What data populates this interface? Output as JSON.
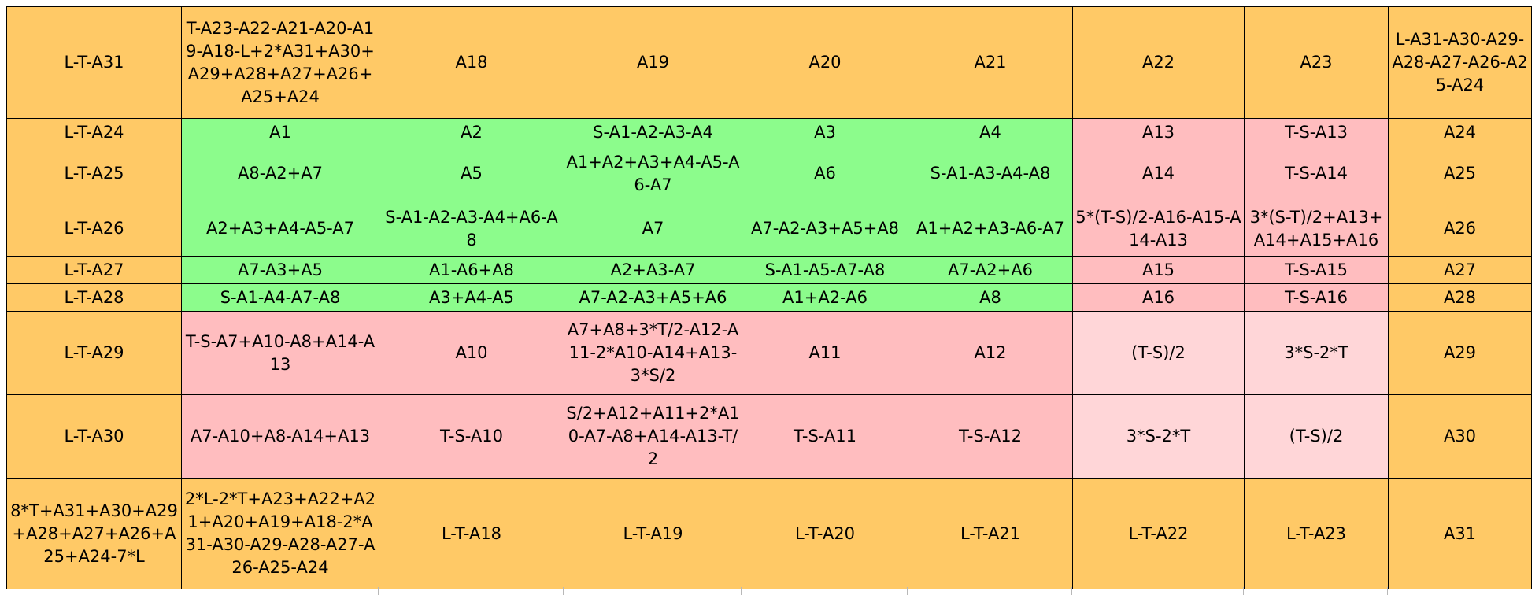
{
  "rows": [
    {
      "cells": [
        {
          "text": "L-T-A31",
          "tone": "orange"
        },
        {
          "text": "T-A23-A22-A21-A20-A19-A18-L+2*A31+A30+A29+A28+A27+A26+A25+A24",
          "tone": "orange"
        },
        {
          "text": "A18",
          "tone": "orange"
        },
        {
          "text": "A19",
          "tone": "orange"
        },
        {
          "text": "A20",
          "tone": "orange"
        },
        {
          "text": "A21",
          "tone": "orange"
        },
        {
          "text": "A22",
          "tone": "orange"
        },
        {
          "text": "A23",
          "tone": "orange"
        },
        {
          "text": "L-A31-A30-A29-A28-A27-A26-A25-A24",
          "tone": "orange"
        }
      ]
    },
    {
      "cells": [
        {
          "text": "L-T-A24",
          "tone": "orange"
        },
        {
          "text": "A1",
          "tone": "green"
        },
        {
          "text": "A2",
          "tone": "green"
        },
        {
          "text": "S-A1-A2-A3-A4",
          "tone": "green"
        },
        {
          "text": "A3",
          "tone": "green"
        },
        {
          "text": "A4",
          "tone": "green"
        },
        {
          "text": "A13",
          "tone": "pink"
        },
        {
          "text": "T-S-A13",
          "tone": "pink"
        },
        {
          "text": "A24",
          "tone": "orange"
        }
      ]
    },
    {
      "cells": [
        {
          "text": "L-T-A25",
          "tone": "orange"
        },
        {
          "text": "A8-A2+A7",
          "tone": "green"
        },
        {
          "text": "A5",
          "tone": "green"
        },
        {
          "text": "A1+A2+A3+A4-A5-A6-A7",
          "tone": "green"
        },
        {
          "text": "A6",
          "tone": "green"
        },
        {
          "text": "S-A1-A3-A4-A8",
          "tone": "green"
        },
        {
          "text": "A14",
          "tone": "pink"
        },
        {
          "text": "T-S-A14",
          "tone": "pink"
        },
        {
          "text": "A25",
          "tone": "orange"
        }
      ]
    },
    {
      "cells": [
        {
          "text": "L-T-A26",
          "tone": "orange"
        },
        {
          "text": "A2+A3+A4-A5-A7",
          "tone": "green"
        },
        {
          "text": "S-A1-A2-A3-A4+A6-A8",
          "tone": "green"
        },
        {
          "text": "A7",
          "tone": "green"
        },
        {
          "text": "A7-A2-A3+A5+A8",
          "tone": "green"
        },
        {
          "text": "A1+A2+A3-A6-A7",
          "tone": "green"
        },
        {
          "text": "5*(T-S)/2-A16-A15-A14-A13",
          "tone": "pink"
        },
        {
          "text": "3*(S-T)/2+A13+A14+A15+A16",
          "tone": "pink"
        },
        {
          "text": "A26",
          "tone": "orange"
        }
      ]
    },
    {
      "cells": [
        {
          "text": "L-T-A27",
          "tone": "orange"
        },
        {
          "text": "A7-A3+A5",
          "tone": "green"
        },
        {
          "text": "A1-A6+A8",
          "tone": "green"
        },
        {
          "text": "A2+A3-A7",
          "tone": "green"
        },
        {
          "text": "S-A1-A5-A7-A8",
          "tone": "green"
        },
        {
          "text": "A7-A2+A6",
          "tone": "green"
        },
        {
          "text": "A15",
          "tone": "pink"
        },
        {
          "text": "T-S-A15",
          "tone": "pink"
        },
        {
          "text": "A27",
          "tone": "orange"
        }
      ]
    },
    {
      "cells": [
        {
          "text": "L-T-A28",
          "tone": "orange"
        },
        {
          "text": "S-A1-A4-A7-A8",
          "tone": "green"
        },
        {
          "text": "A3+A4-A5",
          "tone": "green"
        },
        {
          "text": "A7-A2-A3+A5+A6",
          "tone": "green"
        },
        {
          "text": "A1+A2-A6",
          "tone": "green"
        },
        {
          "text": "A8",
          "tone": "green"
        },
        {
          "text": "A16",
          "tone": "pink"
        },
        {
          "text": "T-S-A16",
          "tone": "pink"
        },
        {
          "text": "A28",
          "tone": "orange"
        }
      ]
    },
    {
      "cells": [
        {
          "text": "L-T-A29",
          "tone": "orange"
        },
        {
          "text": "T-S-A7+A10-A8+A14-A13",
          "tone": "pink"
        },
        {
          "text": "A10",
          "tone": "pink"
        },
        {
          "text": "A7+A8+3*T/2-A12-A11-2*A10-A14+A13-3*S/2",
          "tone": "pink"
        },
        {
          "text": "A11",
          "tone": "pink"
        },
        {
          "text": "A12",
          "tone": "pink"
        },
        {
          "text": "(T-S)/2",
          "tone": "light-pink"
        },
        {
          "text": "3*S-2*T",
          "tone": "light-pink"
        },
        {
          "text": "A29",
          "tone": "orange"
        }
      ]
    },
    {
      "cells": [
        {
          "text": "L-T-A30",
          "tone": "orange"
        },
        {
          "text": "A7-A10+A8-A14+A13",
          "tone": "pink"
        },
        {
          "text": "T-S-A10",
          "tone": "pink"
        },
        {
          "text": "S/2+A12+A11+2*A10-A7-A8+A14-A13-T/2",
          "tone": "pink"
        },
        {
          "text": "T-S-A11",
          "tone": "pink"
        },
        {
          "text": "T-S-A12",
          "tone": "pink"
        },
        {
          "text": "3*S-2*T",
          "tone": "light-pink"
        },
        {
          "text": "(T-S)/2",
          "tone": "light-pink"
        },
        {
          "text": "A30",
          "tone": "orange"
        }
      ]
    },
    {
      "cells": [
        {
          "text": "8*T+A31+A30+A29+A28+A27+A26+A25+A24-7*L",
          "tone": "orange"
        },
        {
          "text": "2*L-2*T+A23+A22+A21+A20+A19+A18-2*A31-A30-A29-A28-A27-A26-A25-A24",
          "tone": "orange"
        },
        {
          "text": "L-T-A18",
          "tone": "orange"
        },
        {
          "text": "L-T-A19",
          "tone": "orange"
        },
        {
          "text": "L-T-A20",
          "tone": "orange"
        },
        {
          "text": "L-T-A21",
          "tone": "orange"
        },
        {
          "text": "L-T-A22",
          "tone": "orange"
        },
        {
          "text": "L-T-A23",
          "tone": "orange"
        },
        {
          "text": "A31",
          "tone": "orange"
        }
      ]
    }
  ],
  "colors": {
    "orange": "#ffc966",
    "green": "#8cfc8c",
    "pink": "#ffbdbf",
    "light-pink": "#ffd6d8",
    "grid_line": "#000000"
  }
}
